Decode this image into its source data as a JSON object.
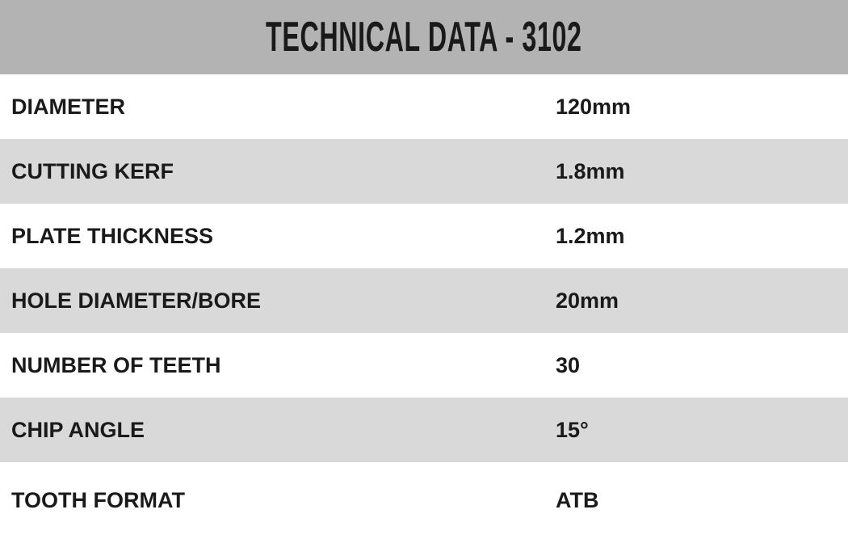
{
  "title": "TECHNICAL DATA - 3102",
  "colors": {
    "header_bg": "#b3b3b3",
    "stripe_bg": "#d9d9d9",
    "text": "#1a1a1a"
  },
  "rows": [
    {
      "label": "DIAMETER",
      "value": "120mm"
    },
    {
      "label": "CUTTING KERF",
      "value": "1.8mm"
    },
    {
      "label": "PLATE THICKNESS",
      "value": "1.2mm"
    },
    {
      "label": "HOLE DIAMETER/BORE",
      "value": "20mm"
    },
    {
      "label": "NUMBER OF TEETH",
      "value": "30"
    },
    {
      "label": "CHIP ANGLE",
      "value": "15°"
    },
    {
      "label": "TOOTH FORMAT",
      "value": "ATB"
    }
  ]
}
